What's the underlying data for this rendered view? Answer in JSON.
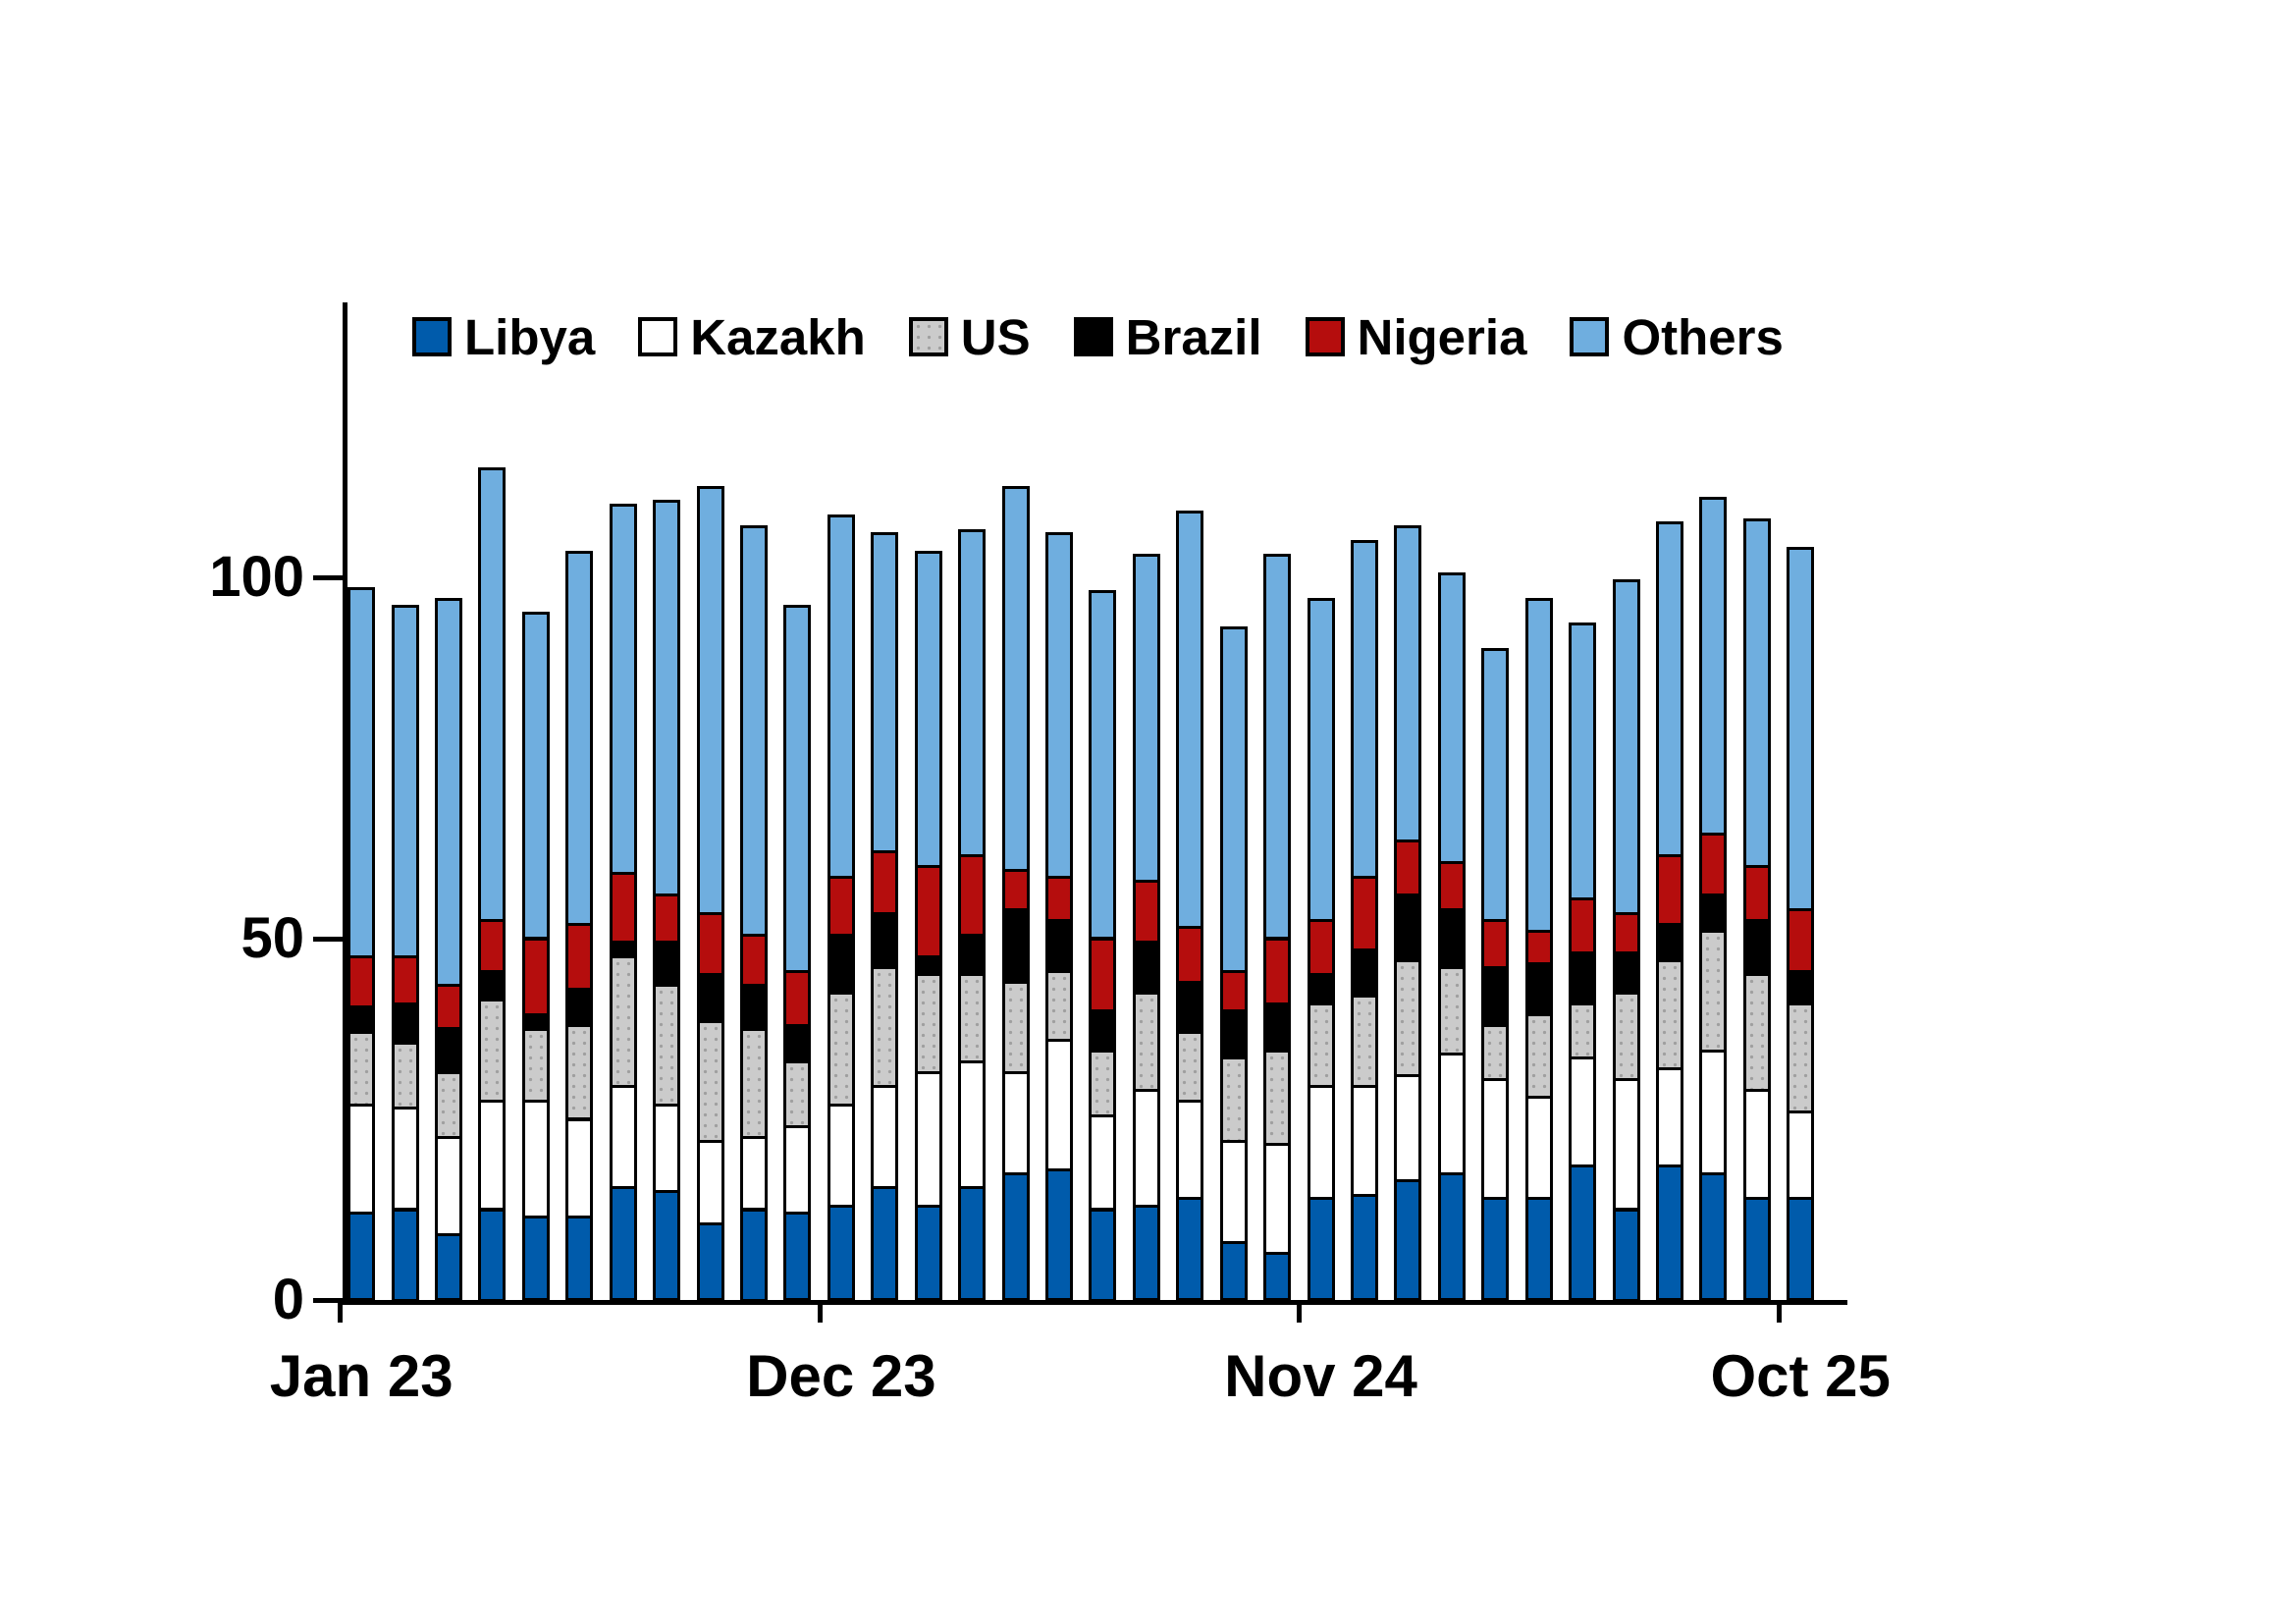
{
  "chart_data": {
    "type": "bar",
    "stacked": true,
    "title": "",
    "xlabel": "",
    "ylabel": "",
    "n_bars": 34,
    "ylim": [
      0,
      138
    ],
    "grid": false,
    "legend_position": "top",
    "y_ticks": [
      0,
      50,
      100
    ],
    "y_tick_labels": [
      "0",
      "50",
      "100"
    ],
    "x_tick_labels": [
      "Jan 23",
      "Dec 23",
      "Nov 24",
      "Oct 25"
    ],
    "x_tick_bar_index": [
      0,
      11,
      22,
      33
    ],
    "background_color": "#FFFFFF",
    "axis_color": "#000000",
    "series": [
      {
        "name": "Libya",
        "color": "#005BAB",
        "pattern": "solid",
        "values": [
          12,
          12.5,
          9,
          12.5,
          11.5,
          11.5,
          15.5,
          15,
          10.5,
          12.5,
          12,
          13,
          15.5,
          13,
          15.5,
          17.5,
          18,
          12.5,
          13,
          14,
          8,
          6.5,
          14,
          14.5,
          16.5,
          17.5,
          14,
          14,
          18.5,
          12.5,
          18.5,
          17.5,
          14,
          14
        ]
      },
      {
        "name": "Kazakh",
        "color": "#FFFFFF",
        "pattern": "solid",
        "values": [
          15,
          14,
          13.5,
          15,
          16,
          13.5,
          14,
          12,
          11.5,
          10,
          12,
          14,
          14,
          18.5,
          17.5,
          14,
          18,
          13,
          16,
          13.5,
          14,
          15,
          15.5,
          15,
          14.5,
          16.5,
          16.5,
          14,
          15,
          18,
          13.5,
          17,
          15,
          12
        ]
      },
      {
        "name": "US",
        "color": "#CBCBCB",
        "pattern": "dots",
        "values": [
          10,
          9,
          9,
          14,
          10,
          13,
          18,
          16.5,
          16.5,
          15,
          9,
          15.5,
          16.5,
          13.5,
          12,
          12.5,
          9.5,
          9,
          13.5,
          9.5,
          11.5,
          13,
          11.5,
          12.5,
          16,
          12,
          7.5,
          11.5,
          7.5,
          12,
          15,
          16.5,
          16,
          15
        ]
      },
      {
        "name": "Brazil",
        "color": "#000000",
        "pattern": "solid",
        "values": [
          3.5,
          5.5,
          6,
          4,
          2,
          5,
          2,
          6,
          6.5,
          6,
          5,
          8,
          7.5,
          2.5,
          5.5,
          10,
          7,
          5.5,
          7,
          7,
          6.5,
          6.5,
          4,
          6.5,
          9,
          8,
          8,
          7,
          7,
          5.5,
          5,
          5,
          7.5,
          4.5
        ]
      },
      {
        "name": "Nigeria",
        "color": "#B50D0D",
        "pattern": "solid",
        "values": [
          7,
          6.5,
          6,
          7,
          10.5,
          9,
          9.5,
          6.5,
          8.5,
          7,
          7.5,
          8,
          8.5,
          12.5,
          11,
          5.5,
          6,
          10,
          8.5,
          7.5,
          5.5,
          9,
          7.5,
          10,
          7.5,
          6.5,
          6.5,
          4.5,
          7.5,
          5.5,
          9.5,
          8.5,
          7.5,
          8.5
        ]
      },
      {
        "name": "Others",
        "color": "#6FAEDF",
        "pattern": "solid",
        "values": [
          51,
          48.5,
          53.5,
          62.5,
          45,
          51.5,
          51,
          54.5,
          59,
          56.5,
          50.5,
          50,
          44,
          43.5,
          45,
          53,
          47.5,
          48,
          45,
          57.5,
          47.5,
          53,
          44.5,
          46.5,
          43.5,
          40,
          37.5,
          46,
          38,
          46,
          46,
          46.5,
          48,
          50
        ]
      }
    ],
    "bar_totals": [
      98.5,
      96,
      97,
      115,
      95,
      103.5,
      110,
      110.5,
      112.5,
      107,
      96,
      108.5,
      106,
      103.5,
      106.5,
      112.5,
      106,
      98,
      103,
      109,
      93,
      103,
      97,
      105,
      107,
      100.5,
      90,
      97,
      93.5,
      99.5,
      107.5,
      111,
      108,
      104
    ]
  }
}
